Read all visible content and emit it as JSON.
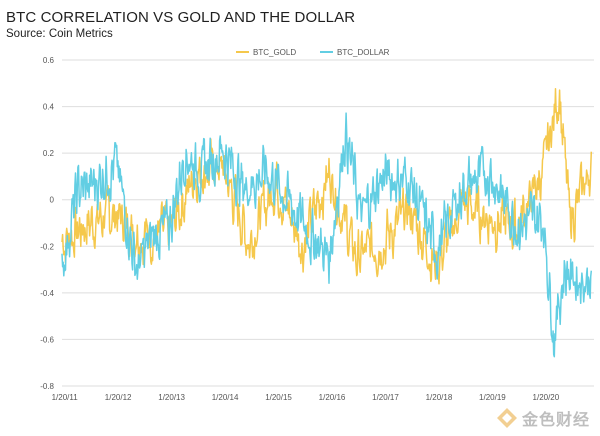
{
  "title": "BTC CORRELATION VS GOLD AND THE DOLLAR",
  "subtitle": "Source: Coin Metrics",
  "watermark": "金色财经",
  "chart_data": {
    "type": "line",
    "ylim": [
      -0.8,
      0.6
    ],
    "yticks": [
      -0.8,
      -0.6,
      -0.4,
      -0.2,
      0,
      0.2,
      0.4,
      0.6
    ],
    "ytick_labels": [
      "-0.8",
      "-0.6",
      "-0.4",
      "-0.2",
      "0",
      "0.2",
      "0.4",
      "0.6"
    ],
    "xlim": [
      2011.0,
      2020.95
    ],
    "xticks": [
      2011.05,
      2012.05,
      2013.05,
      2014.05,
      2015.05,
      2016.05,
      2017.05,
      2018.05,
      2019.05,
      2020.05
    ],
    "xtick_labels": [
      "1/20/11",
      "1/20/12",
      "1/20/13",
      "1/20/14",
      "1/20/15",
      "1/20/16",
      "1/20/17",
      "1/20/18",
      "1/20/19",
      "1/20/20"
    ],
    "grid": true,
    "legend": "top-center",
    "series": [
      {
        "name": "BTC_GOLD",
        "color": "#F5C84C",
        "x": [
          2011.0,
          2011.5,
          2012.0,
          2012.5,
          2013.0,
          2013.5,
          2014.0,
          2014.5,
          2015.0,
          2015.5,
          2016.0,
          2016.5,
          2017.0,
          2017.5,
          2018.0,
          2018.5,
          2019.0,
          2019.5,
          2020.0,
          2020.3,
          2020.5,
          2020.9
        ],
        "y": [
          -0.18,
          -0.1,
          -0.06,
          -0.15,
          -0.14,
          0.12,
          0.14,
          -0.18,
          0.08,
          -0.2,
          0.12,
          -0.25,
          -0.18,
          -0.05,
          -0.28,
          -0.02,
          -0.08,
          -0.12,
          0.12,
          0.48,
          -0.1,
          0.14
        ]
      },
      {
        "name": "BTC_DOLLAR",
        "color": "#62CEE3",
        "x": [
          2011.0,
          2011.3,
          2011.6,
          2012.0,
          2012.4,
          2012.7,
          2013.0,
          2013.3,
          2013.6,
          2014.0,
          2014.4,
          2014.8,
          2015.0,
          2015.5,
          2016.0,
          2016.3,
          2016.6,
          2017.0,
          2017.5,
          2018.0,
          2018.5,
          2019.0,
          2019.5,
          2020.0,
          2020.2,
          2020.4,
          2020.6,
          2020.9
        ],
        "y": [
          -0.28,
          0.04,
          0.06,
          0.16,
          -0.3,
          -0.15,
          -0.12,
          0.2,
          0.12,
          0.22,
          0.05,
          0.12,
          0.08,
          -0.1,
          -0.25,
          0.3,
          -0.08,
          0.1,
          0.08,
          -0.22,
          0.05,
          0.12,
          -0.1,
          -0.08,
          -0.58,
          -0.3,
          -0.34,
          -0.34
        ]
      }
    ]
  }
}
